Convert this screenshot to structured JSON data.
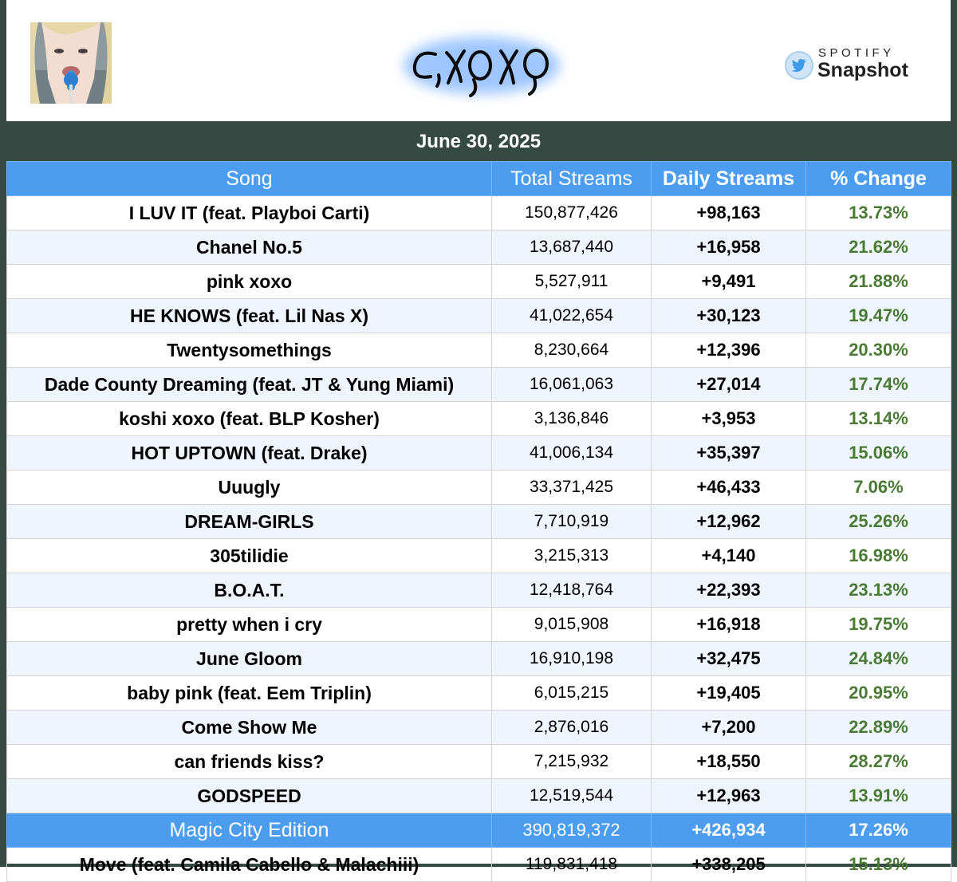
{
  "header": {
    "album_art": "album-cover-photo",
    "logo_text": "C,XOXO",
    "snapshot_top": "SPOTIFY",
    "snapshot_bottom": "Snapshot",
    "snapshot_icon": "twitter-bird-icon"
  },
  "date": "June 30, 2025",
  "columns": {
    "song": "Song",
    "total": "Total Streams",
    "daily": "Daily Streams",
    "change": "% Change"
  },
  "colors": {
    "frame": "#354a42",
    "header_blue": "#4c9cf0",
    "change_green": "#4a7a33"
  },
  "rows": [
    {
      "song": "I LUV IT (feat. Playboi Carti)",
      "total": "150,877,426",
      "daily": "+98,163",
      "change": "13.73%"
    },
    {
      "song": "Chanel No.5",
      "total": "13,687,440",
      "daily": "+16,958",
      "change": "21.62%"
    },
    {
      "song": "pink xoxo",
      "total": "5,527,911",
      "daily": "+9,491",
      "change": "21.88%"
    },
    {
      "song": "HE KNOWS (feat. Lil Nas X)",
      "total": "41,022,654",
      "daily": "+30,123",
      "change": "19.47%"
    },
    {
      "song": "Twentysomethings",
      "total": "8,230,664",
      "daily": "+12,396",
      "change": "20.30%"
    },
    {
      "song": "Dade County Dreaming (feat. JT & Yung Miami)",
      "total": "16,061,063",
      "daily": "+27,014",
      "change": "17.74%"
    },
    {
      "song": "koshi xoxo (feat. BLP Kosher)",
      "total": "3,136,846",
      "daily": "+3,953",
      "change": "13.14%"
    },
    {
      "song": "HOT UPTOWN (feat. Drake)",
      "total": "41,006,134",
      "daily": "+35,397",
      "change": "15.06%"
    },
    {
      "song": "Uuugly",
      "total": "33,371,425",
      "daily": "+46,433",
      "change": "7.06%"
    },
    {
      "song": "DREAM-GIRLS",
      "total": "7,710,919",
      "daily": "+12,962",
      "change": "25.26%"
    },
    {
      "song": "305tilidie",
      "total": "3,215,313",
      "daily": "+4,140",
      "change": "16.98%"
    },
    {
      "song": "B.O.A.T.",
      "total": "12,418,764",
      "daily": "+22,393",
      "change": "23.13%"
    },
    {
      "song": "pretty when i cry",
      "total": "9,015,908",
      "daily": "+16,918",
      "change": "19.75%"
    },
    {
      "song": "June Gloom",
      "total": "16,910,198",
      "daily": "+32,475",
      "change": "24.84%"
    },
    {
      "song": "baby pink (feat. Eem Triplin)",
      "total": "6,015,215",
      "daily": "+19,405",
      "change": "20.95%"
    },
    {
      "song": "Come Show Me",
      "total": "2,876,016",
      "daily": "+7,200",
      "change": "22.89%"
    },
    {
      "song": "can friends kiss?",
      "total": "7,215,932",
      "daily": "+18,550",
      "change": "28.27%"
    },
    {
      "song": "GODSPEED",
      "total": "12,519,544",
      "daily": "+12,963",
      "change": "13.91%"
    }
  ],
  "edition": {
    "song": "Magic City Edition",
    "total": "390,819,372",
    "daily": "+426,934",
    "change": "17.26%"
  },
  "extra": {
    "song": "Move (feat. Camila Cabello & Malachiii)",
    "total": "119,831,418",
    "daily": "+338,205",
    "change": "15.13%"
  }
}
